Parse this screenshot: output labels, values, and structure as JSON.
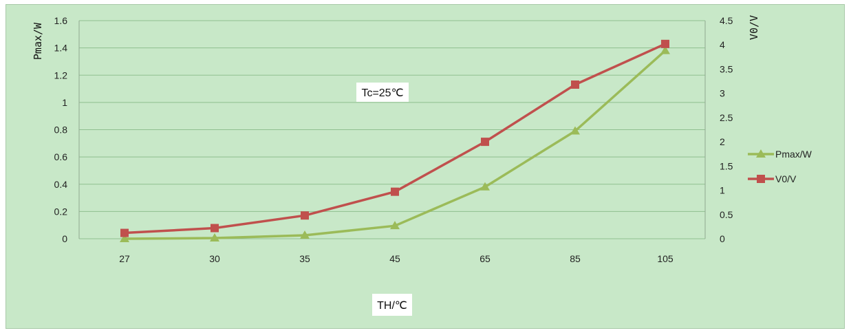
{
  "chart_data": {
    "type": "line",
    "categories": [
      "27",
      "30",
      "35",
      "45",
      "65",
      "85",
      "105"
    ],
    "series": [
      {
        "name": "Pmax/W",
        "axis": "left",
        "color": "#9bbb59",
        "marker": "triangle",
        "values": [
          0.0,
          0.005,
          0.025,
          0.095,
          0.38,
          0.79,
          1.38
        ]
      },
      {
        "name": "V0/V",
        "axis": "right",
        "color": "#c0504d",
        "marker": "square",
        "values": [
          0.12,
          0.22,
          0.48,
          0.97,
          2.0,
          3.18,
          4.02
        ]
      }
    ],
    "ylabel_left": "Pmax/W",
    "ylabel_right": "V0/V",
    "xlabel": "TH/℃",
    "annotation": "Tc=25℃",
    "ylim_left": [
      0,
      1.6
    ],
    "yticks_left": [
      "0",
      "0.2",
      "0.4",
      "0.6",
      "0.8",
      "1",
      "1.2",
      "1.4",
      "1.6"
    ],
    "ylim_right": [
      0,
      4.5
    ],
    "yticks_right": [
      "0",
      "0.5",
      "1",
      "1.5",
      "2",
      "2.5",
      "3",
      "3.5",
      "4",
      "4.5"
    ],
    "grid": "horizontal",
    "legend": "right",
    "colors": {
      "background": "#c8e8c8",
      "grid": "#8fbf8f"
    }
  }
}
